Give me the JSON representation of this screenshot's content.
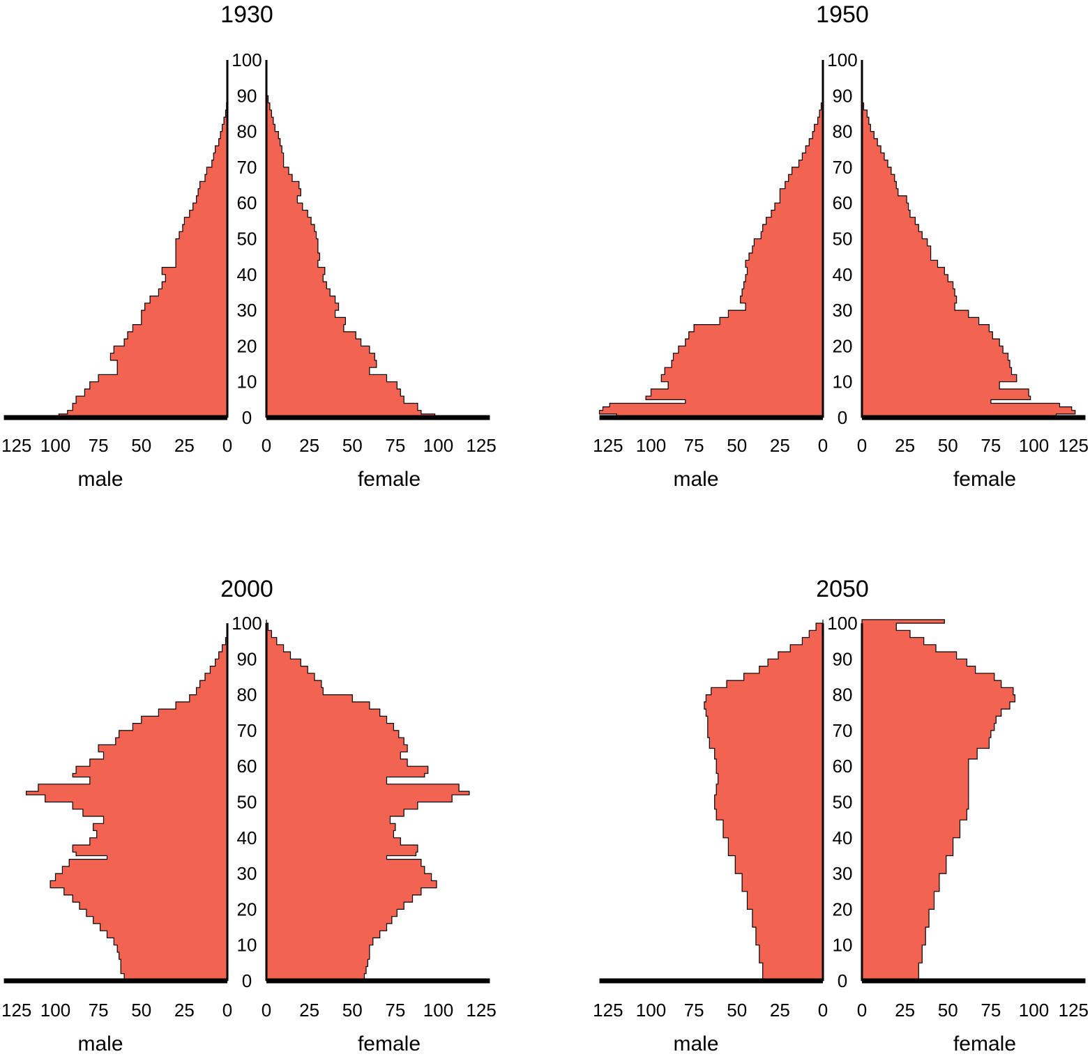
{
  "chart_data": {
    "type": "population-pyramid",
    "unit_note": "population by single year of age",
    "x_ticks": [
      125,
      100,
      75,
      50,
      25,
      0
    ],
    "y_ticks": [
      0,
      10,
      20,
      30,
      40,
      50,
      60,
      70,
      80,
      90,
      100
    ],
    "xlim": [
      0,
      130
    ],
    "ylim": [
      0,
      100
    ],
    "bar_color": "#F26451",
    "axis_color": "#000000",
    "panels": [
      {
        "title": "1930",
        "xlabel_left": "male",
        "xlabel_right": "female",
        "male": {
          "ages": [
            0,
            1,
            2,
            4,
            6,
            8,
            10,
            12,
            14,
            16,
            18,
            20,
            22,
            24,
            26,
            28,
            30,
            32,
            34,
            36,
            38,
            40,
            42,
            44,
            46,
            48,
            50,
            52,
            54,
            56,
            58,
            60,
            62,
            64,
            66,
            68,
            70,
            72,
            74,
            76,
            78,
            80,
            82,
            84,
            86,
            88
          ],
          "values": [
            98,
            93,
            90,
            88,
            83,
            80,
            75,
            64,
            64,
            68,
            66,
            60,
            58,
            55,
            50,
            50,
            48,
            45,
            40,
            38,
            36,
            38,
            30,
            30,
            30,
            30,
            28,
            26,
            25,
            22,
            20,
            18,
            17,
            16,
            13,
            12,
            9,
            8,
            7,
            5,
            4,
            3,
            2,
            1,
            0.5,
            0
          ]
        },
        "female": {
          "ages": [
            0,
            1,
            2,
            4,
            6,
            8,
            10,
            12,
            14,
            16,
            18,
            20,
            22,
            24,
            26,
            28,
            30,
            32,
            34,
            36,
            38,
            40,
            42,
            44,
            46,
            48,
            50,
            52,
            54,
            56,
            58,
            60,
            62,
            64,
            66,
            68,
            70,
            72,
            74,
            76,
            78,
            80,
            82,
            84,
            86,
            88,
            90
          ],
          "values": [
            98,
            90,
            88,
            80,
            78,
            76,
            70,
            60,
            64,
            63,
            60,
            55,
            52,
            45,
            46,
            40,
            42,
            40,
            37,
            35,
            33,
            34,
            30,
            31,
            30,
            30,
            29,
            28,
            26,
            24,
            21,
            18,
            20,
            19,
            15,
            13,
            10,
            10,
            9,
            8,
            7,
            5,
            4,
            3,
            2,
            1,
            0
          ]
        }
      },
      {
        "title": "1950",
        "xlabel_left": "male",
        "xlabel_right": "female",
        "male": {
          "ages": [
            0,
            1,
            2,
            3,
            4,
            5,
            6,
            8,
            10,
            12,
            14,
            16,
            18,
            20,
            22,
            24,
            26,
            28,
            30,
            32,
            34,
            36,
            38,
            40,
            42,
            44,
            46,
            48,
            50,
            52,
            54,
            56,
            58,
            60,
            62,
            64,
            66,
            68,
            70,
            72,
            74,
            76,
            78,
            80,
            82,
            84,
            86,
            88
          ],
          "values": [
            120,
            130,
            128,
            124,
            80,
            103,
            100,
            90,
            94,
            92,
            88,
            87,
            84,
            80,
            78,
            75,
            60,
            55,
            45,
            48,
            47,
            46,
            45,
            44,
            45,
            43,
            41,
            40,
            36,
            35,
            33,
            30,
            28,
            25,
            25,
            22,
            20,
            18,
            14,
            12,
            10,
            8,
            6,
            5,
            3,
            2,
            1,
            0
          ]
        },
        "female": {
          "ages": [
            0,
            1,
            2,
            3,
            4,
            5,
            6,
            8,
            10,
            12,
            14,
            16,
            18,
            20,
            22,
            24,
            26,
            28,
            30,
            32,
            34,
            36,
            38,
            40,
            42,
            44,
            46,
            48,
            50,
            52,
            54,
            56,
            58,
            60,
            62,
            64,
            66,
            68,
            70,
            72,
            74,
            76,
            78,
            80,
            82,
            84,
            86,
            88
          ],
          "values": [
            113,
            124,
            122,
            115,
            75,
            98,
            97,
            80,
            90,
            87,
            86,
            85,
            82,
            80,
            76,
            74,
            68,
            62,
            54,
            55,
            54,
            53,
            50,
            48,
            44,
            40,
            40,
            38,
            35,
            33,
            31,
            28,
            27,
            26,
            21,
            20,
            19,
            17,
            15,
            13,
            11,
            9,
            7,
            5,
            4,
            3,
            1,
            0
          ]
        }
      },
      {
        "title": "2000",
        "xlabel_left": "male",
        "xlabel_right": "female",
        "male": {
          "ages": [
            0,
            2,
            4,
            6,
            8,
            10,
            12,
            14,
            16,
            18,
            20,
            22,
            24,
            26,
            28,
            30,
            32,
            34,
            35,
            36,
            38,
            40,
            42,
            44,
            46,
            48,
            50,
            52,
            53,
            55,
            57,
            58,
            60,
            62,
            64,
            66,
            68,
            70,
            72,
            74,
            76,
            78,
            80,
            82,
            84,
            86,
            88,
            90,
            92,
            94,
            96
          ],
          "values": [
            60,
            62,
            62,
            63,
            64,
            66,
            70,
            74,
            78,
            82,
            86,
            90,
            95,
            103,
            100,
            96,
            92,
            70,
            88,
            90,
            80,
            76,
            78,
            72,
            84,
            90,
            106,
            117,
            110,
            80,
            90,
            88,
            80,
            72,
            75,
            65,
            63,
            55,
            50,
            40,
            30,
            22,
            18,
            16,
            13,
            10,
            7,
            5,
            3,
            1,
            0
          ]
        },
        "female": {
          "ages": [
            0,
            2,
            4,
            6,
            8,
            10,
            12,
            14,
            16,
            18,
            20,
            22,
            24,
            26,
            28,
            30,
            32,
            34,
            35,
            36,
            38,
            40,
            42,
            44,
            46,
            48,
            50,
            52,
            53,
            55,
            57,
            58,
            60,
            62,
            64,
            66,
            68,
            70,
            72,
            74,
            76,
            78,
            80,
            82,
            84,
            86,
            88,
            90,
            92,
            94,
            96,
            98,
            100
          ],
          "values": [
            57,
            58,
            59,
            60,
            60,
            62,
            66,
            70,
            73,
            76,
            80,
            85,
            90,
            99,
            96,
            92,
            90,
            70,
            87,
            88,
            78,
            74,
            75,
            72,
            80,
            88,
            108,
            118,
            112,
            70,
            92,
            94,
            82,
            78,
            82,
            80,
            77,
            74,
            70,
            66,
            60,
            50,
            33,
            32,
            28,
            24,
            20,
            14,
            10,
            6,
            3,
            1,
            0
          ]
        }
      },
      {
        "title": "2050",
        "xlabel_left": "male",
        "xlabel_right": "female",
        "male": {
          "ages": [
            0,
            5,
            10,
            15,
            20,
            25,
            30,
            35,
            40,
            45,
            48,
            52,
            55,
            58,
            62,
            65,
            68,
            70,
            72,
            74,
            76,
            78,
            80,
            82,
            84,
            86,
            88,
            90,
            92,
            94,
            96,
            98,
            100
          ],
          "values": [
            35,
            37,
            39,
            41,
            44,
            47,
            51,
            55,
            58,
            62,
            63,
            62,
            61,
            62,
            63,
            66,
            67,
            67,
            67,
            68,
            69,
            68,
            65,
            56,
            46,
            37,
            32,
            26,
            19,
            12,
            8,
            4,
            0
          ]
        },
        "female": {
          "ages": [
            0,
            5,
            10,
            15,
            20,
            25,
            30,
            35,
            40,
            45,
            48,
            52,
            55,
            58,
            62,
            65,
            68,
            70,
            72,
            74,
            76,
            78,
            80,
            82,
            84,
            86,
            88,
            90,
            92,
            94,
            96,
            98,
            100
          ],
          "values": [
            33,
            35,
            37,
            39,
            42,
            45,
            49,
            53,
            57,
            61,
            62,
            62,
            62,
            62,
            67,
            74,
            75,
            77,
            78,
            81,
            86,
            89,
            88,
            81,
            77,
            66,
            61,
            55,
            43,
            36,
            28,
            20,
            48
          ]
        }
      }
    ]
  }
}
